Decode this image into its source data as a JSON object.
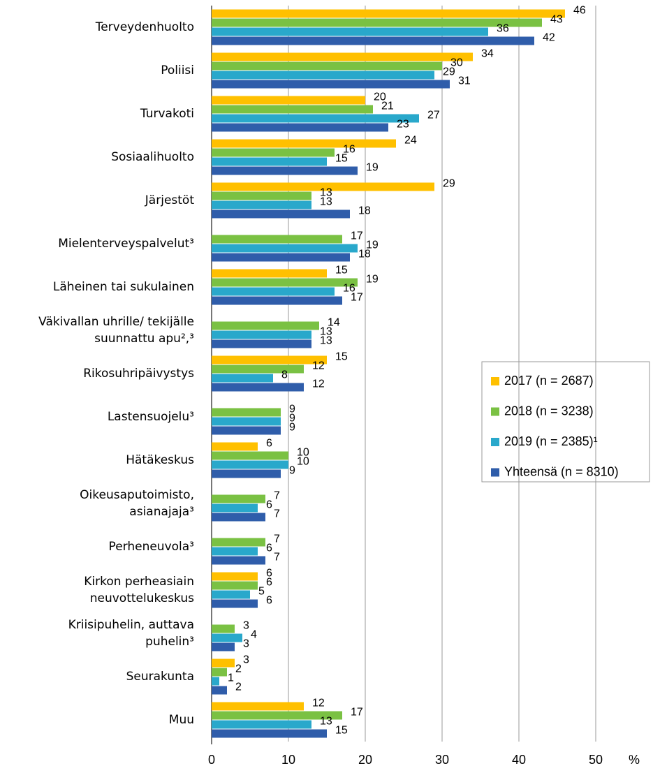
{
  "chart_data": {
    "type": "hbar",
    "categories": [
      "Terveydenhuolto",
      "Poliisi",
      "Turvakoti",
      "Sosiaalihuolto",
      "Järjestöt",
      "Mielenterveyspalvelut³",
      "Läheinen tai sukulainen",
      "Väkivallan uhrille/ tekijälle\nsuunnattu apu²,³",
      "Rikosuhripäivystys",
      "Lastensuojelu³",
      "Hätäkeskus",
      "Oikeusaputoimisto,\nasianajaja³",
      "Perheneuvola³",
      "Kirkon perheasiain\nneuvottelukeskus",
      "Kriisipuhelin, auttava\npuhelin³",
      "Seurakunta",
      "Muu"
    ],
    "series": [
      {
        "name": "2017 (n = 2687)",
        "color": "#FFC000",
        "values": [
          46,
          34,
          20,
          24,
          29,
          null,
          15,
          null,
          15,
          null,
          6,
          null,
          null,
          6,
          null,
          3,
          12
        ]
      },
      {
        "name": "2018 (n = 3238)",
        "color": "#7AC143",
        "values": [
          43,
          30,
          21,
          16,
          13,
          17,
          19,
          14,
          12,
          9,
          10,
          7,
          7,
          6,
          3,
          2,
          17
        ]
      },
      {
        "name": "2019 (n = 2385)¹",
        "color": "#29A8CB",
        "values": [
          36,
          29,
          27,
          15,
          13,
          19,
          16,
          13,
          8,
          9,
          10,
          6,
          6,
          5,
          4,
          1,
          13
        ]
      },
      {
        "name": "Yhteensä (n = 8310)",
        "color": "#2F5DAA",
        "values": [
          42,
          31,
          23,
          19,
          18,
          18,
          17,
          13,
          12,
          9,
          9,
          7,
          7,
          6,
          3,
          2,
          15
        ]
      }
    ],
    "xlabel": "%",
    "xlim": [
      0,
      50
    ],
    "xticks": [
      0,
      10,
      20,
      30,
      40,
      50
    ],
    "grid": true
  }
}
